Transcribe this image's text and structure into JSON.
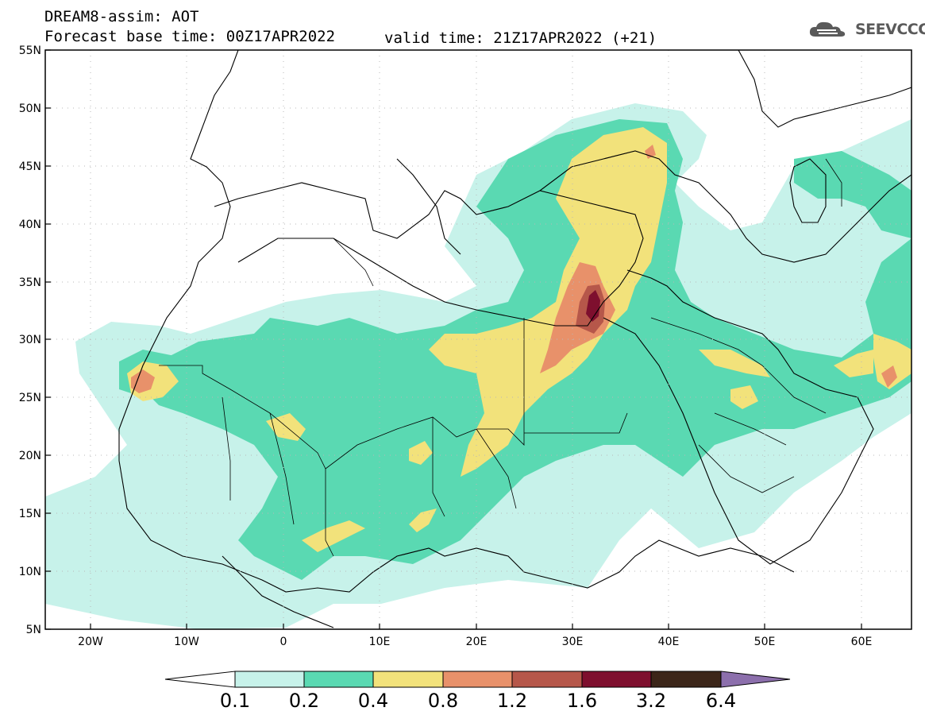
{
  "header": {
    "line1": "DREAM8-assim: AOT",
    "line2": "Forecast base time: 00Z17APR2022",
    "valid": "valid time: 21Z17APR2022 (+21)",
    "logo_text": "SEEVCCC"
  },
  "map": {
    "lon_range": [
      -25,
      65
    ],
    "lat_range": [
      5,
      55
    ],
    "lat_ticks": [
      "55N",
      "50N",
      "45N",
      "40N",
      "35N",
      "30N",
      "25N",
      "20N",
      "15N",
      "10N",
      "5N"
    ],
    "lon_ticks": [
      "20W",
      "10W",
      "0",
      "10E",
      "20E",
      "30E",
      "40E",
      "50E",
      "60E"
    ]
  },
  "colorbar": {
    "labels": [
      "0.1",
      "0.2",
      "0.4",
      "0.8",
      "1.2",
      "1.6",
      "3.2",
      "6.4"
    ],
    "colors": [
      "#c7f2ea",
      "#5ad9b2",
      "#f2e27b",
      "#e8916a",
      "#b6574a",
      "#7e0f2e",
      "#3c2619",
      "#8c6fac"
    ]
  }
}
